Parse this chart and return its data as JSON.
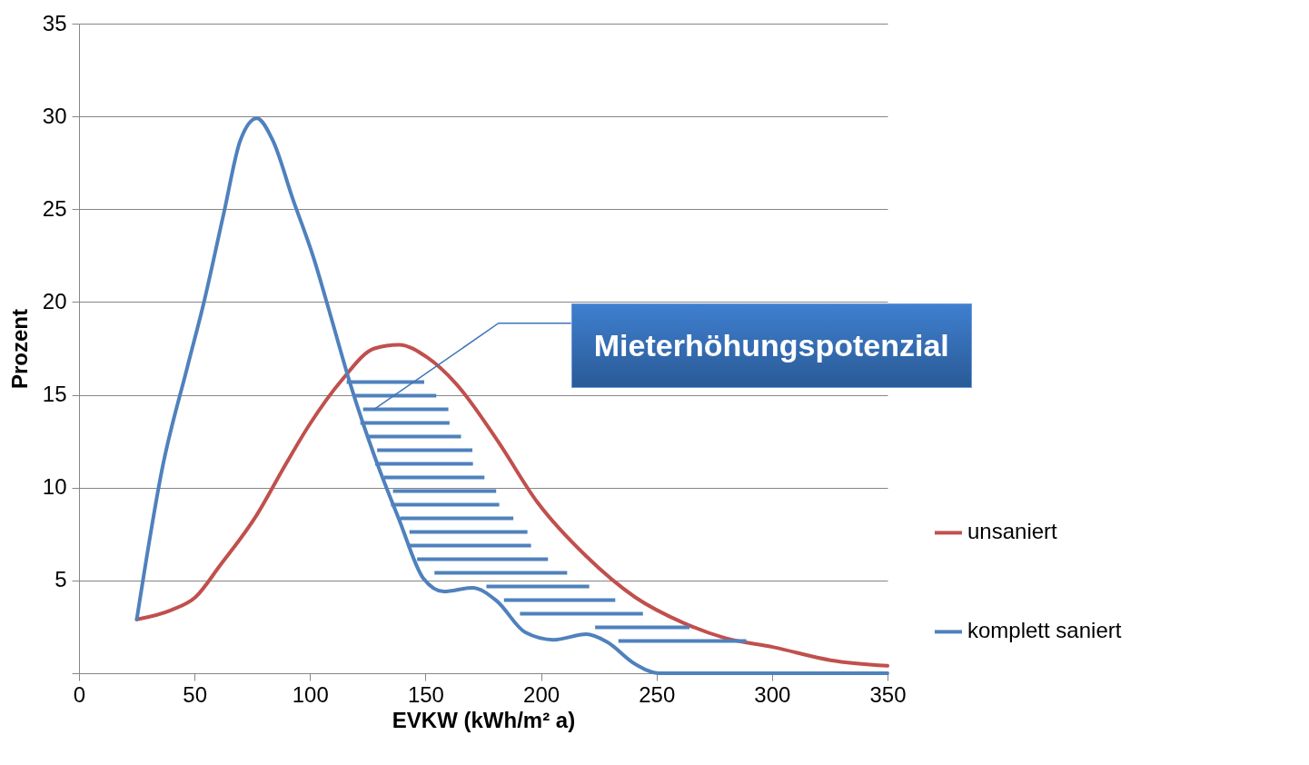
{
  "chart_data": {
    "type": "line",
    "xlabel": "EVKW (kWh/m² a)",
    "ylabel": "Prozent",
    "xlim": [
      0,
      350
    ],
    "xticks": [
      0,
      50,
      100,
      150,
      200,
      250,
      300,
      350
    ],
    "ylim": [
      0,
      35
    ],
    "yticks": [
      {
        "value": 0,
        "label": null
      },
      5,
      10,
      15,
      20,
      25,
      30,
      35
    ],
    "grid": "y",
    "legend": "right",
    "marker": "none",
    "line_style": "solid",
    "annotations": [
      "Mieterhöhungspotenzial"
    ],
    "series": [
      {
        "name": "unsaniert",
        "color": "#c0504d",
        "x": [
          25,
          39.8,
          50.4,
          61,
          76.8,
          89.2,
          99.8,
          113.8,
          127.9,
          138.5,
          150.9,
          163.2,
          180.8,
          198.5,
          219.6,
          240.7,
          261.9,
          279.5,
          300.7,
          325.4,
          350
        ],
        "values": [
          2.9,
          3.4,
          4.1,
          5.8,
          8.5,
          11.2,
          13.4,
          15.8,
          17.5,
          17.7,
          17.0,
          15.6,
          12.6,
          9.2,
          6.3,
          4.1,
          2.7,
          1.9,
          1.4,
          0.7,
          0.4
        ]
      },
      {
        "name": "komplett saniert",
        "color": "#4f81bd",
        "x": [
          25,
          36.3,
          46.9,
          53.9,
          62.7,
          69.8,
          77,
          83.9,
          92.7,
          101.5,
          108.6,
          117.4,
          127.9,
          138.5,
          149.1,
          157.9,
          170.3,
          180.8,
          193.2,
          205.5,
          219.6,
          228.4,
          240.7,
          251.3,
          276,
          350
        ],
        "values": [
          2.9,
          11.2,
          16.5,
          19.9,
          24.8,
          28.7,
          29.9,
          28.7,
          25.5,
          22.4,
          19.4,
          15.6,
          11.7,
          8.3,
          5.1,
          4.4,
          4.6,
          3.9,
          2.2,
          1.8,
          2.1,
          1.7,
          0.5,
          0,
          0,
          0
        ]
      }
    ]
  }
}
